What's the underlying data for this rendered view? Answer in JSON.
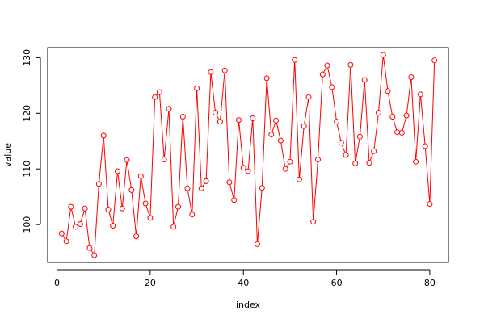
{
  "chart_data": {
    "type": "line",
    "title": "",
    "xlabel": "index",
    "ylabel": "value",
    "xlim": [
      -2,
      84
    ],
    "ylim": [
      93.2,
      131.8
    ],
    "x_ticks": [
      0,
      20,
      40,
      60,
      80
    ],
    "y_ticks": [
      100,
      110,
      120,
      130
    ],
    "grid": false,
    "legend": "none",
    "marker": "open-circle",
    "color": "#ff0000",
    "series": [
      {
        "x": [
          1,
          2,
          3,
          4,
          5,
          6,
          7,
          8,
          9,
          10,
          11,
          12,
          13,
          14,
          15,
          16,
          17,
          18,
          19,
          20,
          21,
          22,
          23,
          24,
          25,
          26,
          27,
          28,
          29,
          30,
          31,
          32,
          33,
          34,
          35,
          36,
          37,
          38,
          39,
          40,
          41,
          42,
          43,
          44,
          45,
          46,
          47,
          48,
          49,
          50,
          51,
          52,
          53,
          54,
          55,
          56,
          57,
          58,
          59,
          60,
          61,
          62,
          63,
          64,
          65,
          66,
          67,
          68,
          69,
          70,
          71,
          72,
          73,
          74,
          75,
          76,
          77,
          78,
          79,
          80,
          81
        ],
        "values": [
          98.4,
          97.0,
          103.2,
          99.6,
          100.1,
          102.9,
          95.8,
          94.5,
          107.3,
          116.0,
          102.7,
          99.8,
          109.6,
          102.9,
          111.6,
          106.2,
          97.9,
          108.7,
          103.8,
          101.2,
          122.9,
          123.8,
          111.7,
          120.8,
          99.6,
          103.2,
          119.4,
          106.5,
          101.8,
          124.5,
          106.5,
          107.8,
          127.4,
          120.1,
          118.5,
          127.7,
          107.6,
          104.4,
          118.8,
          110.2,
          109.6,
          119.1,
          96.5,
          106.6,
          126.3,
          116.2,
          118.7,
          115.1,
          110.0,
          111.3,
          129.6,
          108.1,
          117.7,
          122.9,
          100.5,
          111.7,
          127.0,
          128.6,
          124.7,
          118.5,
          114.7,
          112.5,
          128.7,
          111.0,
          115.8,
          126.0,
          111.1,
          113.2,
          120.1,
          130.5,
          124.0,
          119.4,
          116.6,
          116.5,
          119.6,
          126.5,
          111.3,
          123.4,
          114.1,
          103.7,
          129.5
        ]
      }
    ]
  }
}
